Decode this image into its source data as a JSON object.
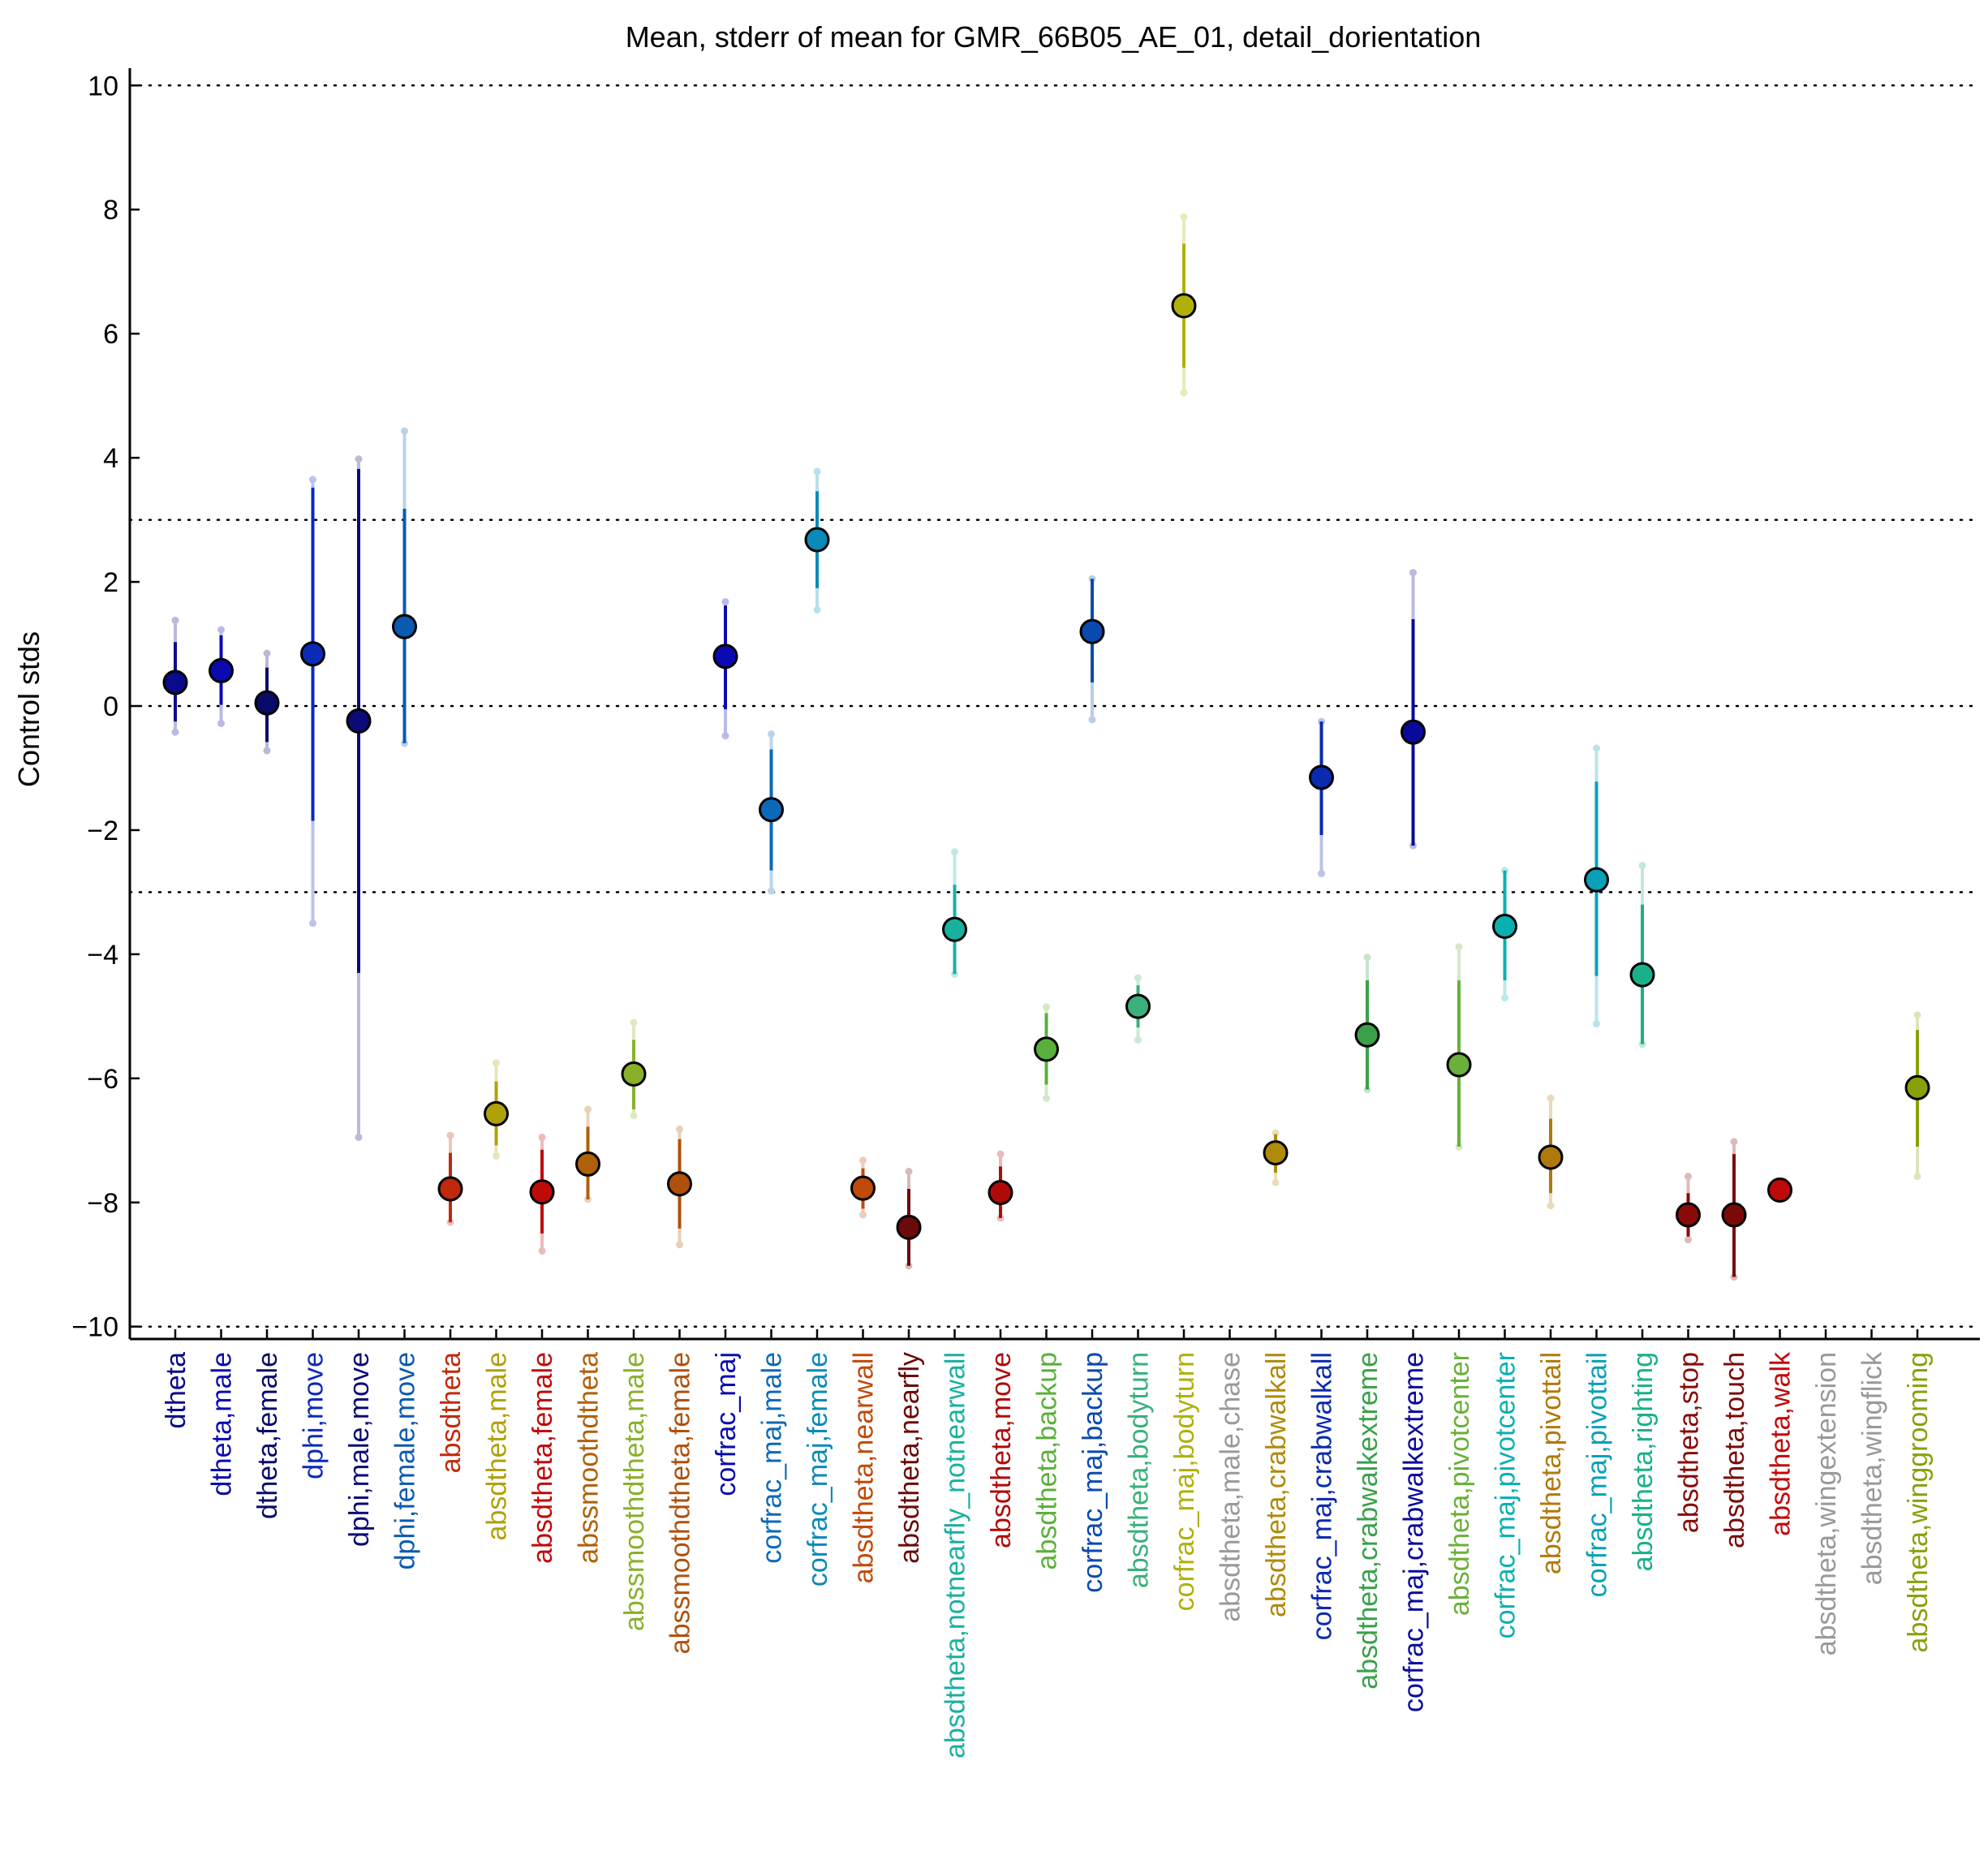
{
  "chart_data": {
    "type": "errorbar",
    "title": "Mean, stderr of mean for GMR_66B05_AE_01, detail_dorientation",
    "xlabel": "",
    "ylabel": "Control stds",
    "ylim": [
      -10.2,
      10.2
    ],
    "yticks": [
      -10,
      -8,
      -6,
      -4,
      -2,
      0,
      2,
      4,
      6,
      8,
      10
    ],
    "ytick_labels": [
      "−10",
      "−8",
      "−6",
      "−4",
      "−2",
      "0",
      "2",
      "4",
      "6",
      "8",
      "10"
    ],
    "reference_lines": [
      -10,
      -3,
      0,
      3,
      10
    ],
    "categories": [
      {
        "label": "dtheta",
        "mean": 0.38,
        "sem_lo": -0.25,
        "sem_hi": 1.03,
        "range_lo": -0.42,
        "range_hi": 1.38,
        "color": "#0a0a8a"
      },
      {
        "label": "dtheta,male",
        "mean": 0.57,
        "sem_lo": 0.02,
        "sem_hi": 1.14,
        "range_lo": -0.28,
        "range_hi": 1.23,
        "color": "#0a0ab0"
      },
      {
        "label": "dtheta,female",
        "mean": 0.05,
        "sem_lo": -0.58,
        "sem_hi": 0.62,
        "range_lo": -0.72,
        "range_hi": 0.85,
        "color": "#0a0a6a"
      },
      {
        "label": "dphi,move",
        "mean": 0.84,
        "sem_lo": -1.85,
        "sem_hi": 3.52,
        "range_lo": -3.5,
        "range_hi": 3.65,
        "color": "#0a2ab8"
      },
      {
        "label": "dphi,male,move",
        "mean": -0.24,
        "sem_lo": -4.3,
        "sem_hi": 3.82,
        "range_lo": -6.95,
        "range_hi": 3.98,
        "color": "#0a0a78"
      },
      {
        "label": "dphi,female,move",
        "mean": 1.28,
        "sem_lo": -0.6,
        "sem_hi": 3.18,
        "range_lo": -0.6,
        "range_hi": 4.43,
        "color": "#0a5ab0"
      },
      {
        "label": "absdtheta",
        "mean": -7.78,
        "sem_lo": -8.32,
        "sem_hi": -7.2,
        "range_lo": -8.32,
        "range_hi": -6.92,
        "color": "#c02a0a"
      },
      {
        "label": "absdtheta,male",
        "mean": -6.57,
        "sem_lo": -7.08,
        "sem_hi": -6.05,
        "range_lo": -7.25,
        "range_hi": -5.75,
        "color": "#b0a00a"
      },
      {
        "label": "absdtheta,female",
        "mean": -7.83,
        "sem_lo": -8.5,
        "sem_hi": -7.15,
        "range_lo": -8.78,
        "range_hi": -6.95,
        "color": "#c00a0a"
      },
      {
        "label": "abssmoothdtheta",
        "mean": -7.38,
        "sem_lo": -7.95,
        "sem_hi": -6.78,
        "range_lo": -7.95,
        "range_hi": -6.5,
        "color": "#b0600a"
      },
      {
        "label": "abssmoothdtheta,male",
        "mean": -5.93,
        "sem_lo": -6.5,
        "sem_hi": -5.38,
        "range_lo": -6.6,
        "range_hi": -5.1,
        "color": "#8ab02a"
      },
      {
        "label": "abssmoothdtheta,female",
        "mean": -7.7,
        "sem_lo": -8.42,
        "sem_hi": -6.98,
        "range_lo": -8.68,
        "range_hi": -6.82,
        "color": "#b0500a"
      },
      {
        "label": "corfrac_maj",
        "mean": 0.8,
        "sem_lo": -0.05,
        "sem_hi": 1.62,
        "range_lo": -0.48,
        "range_hi": 1.68,
        "color": "#0a0ab0"
      },
      {
        "label": "corfrac_maj,male",
        "mean": -1.67,
        "sem_lo": -2.65,
        "sem_hi": -0.7,
        "range_lo": -2.98,
        "range_hi": -0.45,
        "color": "#0a6ab8"
      },
      {
        "label": "corfrac_maj,female",
        "mean": 2.68,
        "sem_lo": 1.9,
        "sem_hi": 3.46,
        "range_lo": 1.55,
        "range_hi": 3.78,
        "color": "#0a8ab8"
      },
      {
        "label": "absdtheta,nearwall",
        "mean": -7.77,
        "sem_lo": -8.1,
        "sem_hi": -7.45,
        "range_lo": -8.2,
        "range_hi": -7.32,
        "color": "#c04a0a"
      },
      {
        "label": "absdtheta,nearfly",
        "mean": -8.4,
        "sem_lo": -9.02,
        "sem_hi": -7.78,
        "range_lo": -9.02,
        "range_hi": -7.5,
        "color": "#6a0a0a"
      },
      {
        "label": "absdtheta,notnearfly_notnearwall",
        "mean": -3.6,
        "sem_lo": -4.32,
        "sem_hi": -2.88,
        "range_lo": -4.32,
        "range_hi": -2.35,
        "color": "#1ab0a0"
      },
      {
        "label": "absdtheta,move",
        "mean": -7.84,
        "sem_lo": -8.25,
        "sem_hi": -7.42,
        "range_lo": -8.25,
        "range_hi": -7.22,
        "color": "#b00a0a"
      },
      {
        "label": "absdtheta,backup",
        "mean": -5.53,
        "sem_lo": -6.1,
        "sem_hi": -4.95,
        "range_lo": -6.32,
        "range_hi": -4.85,
        "color": "#5ab03a"
      },
      {
        "label": "corfrac_maj,backup",
        "mean": 1.2,
        "sem_lo": 0.38,
        "sem_hi": 2.05,
        "range_lo": -0.22,
        "range_hi": 2.05,
        "color": "#0a4ab0"
      },
      {
        "label": "absdtheta,bodyturn",
        "mean": -4.84,
        "sem_lo": -5.18,
        "sem_hi": -4.5,
        "range_lo": -5.38,
        "range_hi": -4.38,
        "color": "#3ab07a"
      },
      {
        "label": "corfrac_maj,bodyturn",
        "mean": 6.45,
        "sem_lo": 5.45,
        "sem_hi": 7.45,
        "range_lo": 5.05,
        "range_hi": 7.88,
        "color": "#b0b00a"
      },
      {
        "label": "absdtheta,male,chase",
        "mean": null,
        "sem_lo": null,
        "sem_hi": null,
        "range_lo": null,
        "range_hi": null,
        "color": "#999999"
      },
      {
        "label": "absdtheta,crabwalkall",
        "mean": -7.2,
        "sem_lo": -7.52,
        "sem_hi": -6.9,
        "range_lo": -7.68,
        "range_hi": -6.88,
        "color": "#b08a0a"
      },
      {
        "label": "corfrac_maj,crabwalkall",
        "mean": -1.15,
        "sem_lo": -2.08,
        "sem_hi": -0.25,
        "range_lo": -2.7,
        "range_hi": -0.25,
        "color": "#0a2ab0"
      },
      {
        "label": "absdtheta,crabwalkextreme",
        "mean": -5.3,
        "sem_lo": -6.18,
        "sem_hi": -4.42,
        "range_lo": -6.18,
        "range_hi": -4.05,
        "color": "#3aa04a"
      },
      {
        "label": "corfrac_maj,crabwalkextreme",
        "mean": -0.42,
        "sem_lo": -2.25,
        "sem_hi": 1.4,
        "range_lo": -2.25,
        "range_hi": 2.15,
        "color": "#0a0a9a"
      },
      {
        "label": "absdtheta,pivotcenter",
        "mean": -5.78,
        "sem_lo": -7.1,
        "sem_hi": -4.42,
        "range_lo": -7.1,
        "range_hi": -3.88,
        "color": "#6ab03a"
      },
      {
        "label": "corfrac_maj,pivotcenter",
        "mean": -3.55,
        "sem_lo": -4.42,
        "sem_hi": -2.65,
        "range_lo": -4.7,
        "range_hi": -2.65,
        "color": "#0ab0b0"
      },
      {
        "label": "absdtheta,pivottail",
        "mean": -7.27,
        "sem_lo": -7.85,
        "sem_hi": -6.65,
        "range_lo": -8.05,
        "range_hi": -6.32,
        "color": "#b07a0a"
      },
      {
        "label": "corfrac_maj,pivottail",
        "mean": -2.8,
        "sem_lo": -4.35,
        "sem_hi": -1.22,
        "range_lo": -5.12,
        "range_hi": -0.68,
        "color": "#0aa0b8"
      },
      {
        "label": "absdtheta,righting",
        "mean": -4.33,
        "sem_lo": -5.45,
        "sem_hi": -3.2,
        "range_lo": -5.45,
        "range_hi": -2.57,
        "color": "#1ab08a"
      },
      {
        "label": "absdtheta,stop",
        "mean": -8.2,
        "sem_lo": -8.55,
        "sem_hi": -7.85,
        "range_lo": -8.6,
        "range_hi": -7.58,
        "color": "#8a0a0a"
      },
      {
        "label": "absdtheta,touch",
        "mean": -8.2,
        "sem_lo": -9.2,
        "sem_hi": -7.22,
        "range_lo": -9.2,
        "range_hi": -7.02,
        "color": "#7a0a0a"
      },
      {
        "label": "absdtheta,walk",
        "mean": -7.8,
        "sem_lo": -7.8,
        "sem_hi": -7.8,
        "range_lo": -7.8,
        "range_hi": -7.8,
        "color": "#c00a0a"
      },
      {
        "label": "absdtheta,wingextension",
        "mean": null,
        "sem_lo": null,
        "sem_hi": null,
        "range_lo": null,
        "range_hi": null,
        "color": "#999999"
      },
      {
        "label": "absdtheta,wingflick",
        "mean": null,
        "sem_lo": null,
        "sem_hi": null,
        "range_lo": null,
        "range_hi": null,
        "color": "#999999"
      },
      {
        "label": "absdtheta,winggrooming",
        "mean": -6.15,
        "sem_lo": -7.1,
        "sem_hi": -5.22,
        "range_lo": -7.58,
        "range_hi": -4.98,
        "color": "#8aa00a"
      }
    ]
  }
}
